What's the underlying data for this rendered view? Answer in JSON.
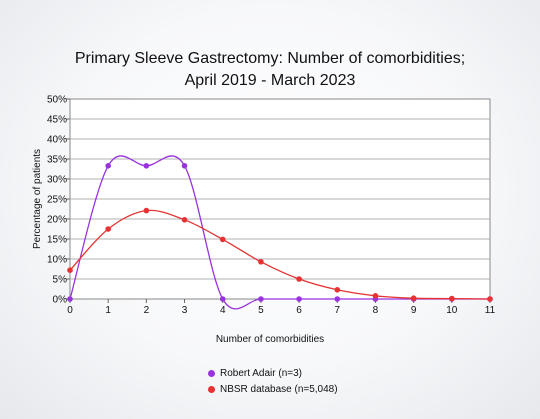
{
  "chart_data": {
    "type": "line",
    "title_line1": "Primary Sleeve Gastrectomy: Number of comorbidities;",
    "title_line2": "April 2019 - March 2023",
    "xlabel": "Number of comorbidities",
    "ylabel": "Percentage of patients",
    "x": [
      0,
      1,
      2,
      3,
      4,
      5,
      6,
      7,
      8,
      9,
      10,
      11
    ],
    "x_tick_labels": [
      "0",
      "1",
      "2",
      "3",
      "4",
      "5",
      "6",
      "7",
      "8",
      "9",
      "10",
      "11"
    ],
    "y_tick_labels": [
      "0%",
      "5%",
      "10%",
      "15%",
      "20%",
      "25%",
      "30%",
      "35%",
      "40%",
      "45%",
      "50%"
    ],
    "ylim": [
      0,
      50
    ],
    "y_unit": "%",
    "grid": true,
    "legend_position": "bottom",
    "series": [
      {
        "name": "Robert Adair (n=3)",
        "color": "#9933dd",
        "values": [
          0,
          33.3,
          33.3,
          33.3,
          0,
          0,
          0,
          0,
          0,
          0,
          0,
          0
        ]
      },
      {
        "name": "NBSR database (n=5,048)",
        "color": "#e63232",
        "values": [
          7.2,
          17.5,
          22.1,
          19.8,
          14.9,
          9.3,
          5.0,
          2.3,
          0.8,
          0.2,
          0.1,
          0.0
        ]
      }
    ]
  }
}
